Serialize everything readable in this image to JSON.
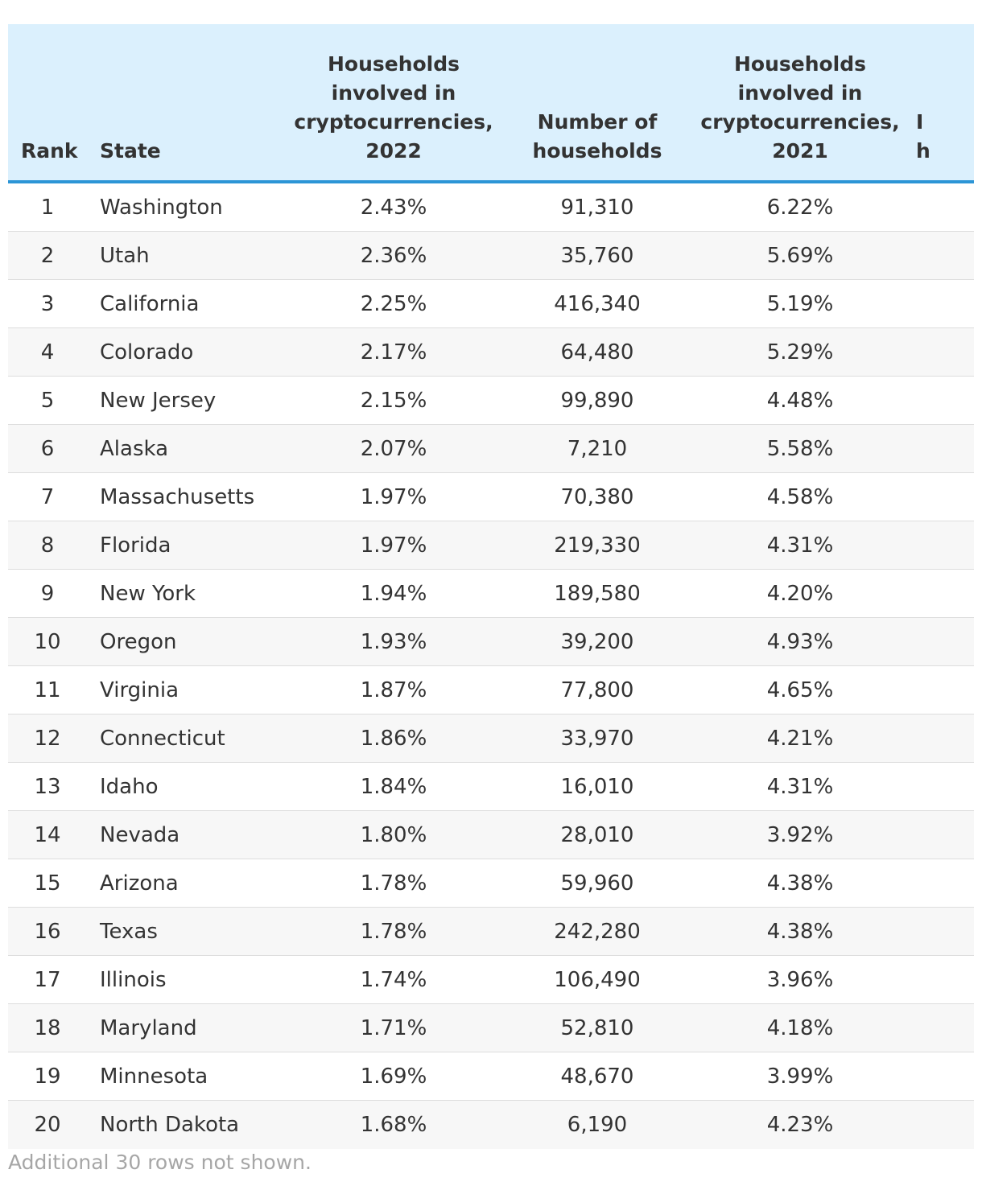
{
  "table": {
    "headers": {
      "rank": "Rank",
      "state": "State",
      "households_2022": "Households\ninvolved in\ncryptocurrencies,\n2022",
      "num_households": "Number of\nhouseholds",
      "households_2021": "Households\ninvolved in\ncryptocurrencies,\n2021",
      "cut_off": "I\nh"
    },
    "rows": [
      {
        "rank": "1",
        "state": "Washington",
        "h2022": "2.43%",
        "num": "91,310",
        "h2021": "6.22%"
      },
      {
        "rank": "2",
        "state": "Utah",
        "h2022": "2.36%",
        "num": "35,760",
        "h2021": "5.69%"
      },
      {
        "rank": "3",
        "state": "California",
        "h2022": "2.25%",
        "num": "416,340",
        "h2021": "5.19%"
      },
      {
        "rank": "4",
        "state": "Colorado",
        "h2022": "2.17%",
        "num": "64,480",
        "h2021": "5.29%"
      },
      {
        "rank": "5",
        "state": "New Jersey",
        "h2022": "2.15%",
        "num": "99,890",
        "h2021": "4.48%"
      },
      {
        "rank": "6",
        "state": "Alaska",
        "h2022": "2.07%",
        "num": "7,210",
        "h2021": "5.58%"
      },
      {
        "rank": "7",
        "state": "Massachusetts",
        "h2022": "1.97%",
        "num": "70,380",
        "h2021": "4.58%"
      },
      {
        "rank": "8",
        "state": "Florida",
        "h2022": "1.97%",
        "num": "219,330",
        "h2021": "4.31%"
      },
      {
        "rank": "9",
        "state": "New York",
        "h2022": "1.94%",
        "num": "189,580",
        "h2021": "4.20%"
      },
      {
        "rank": "10",
        "state": "Oregon",
        "h2022": "1.93%",
        "num": "39,200",
        "h2021": "4.93%"
      },
      {
        "rank": "11",
        "state": "Virginia",
        "h2022": "1.87%",
        "num": "77,800",
        "h2021": "4.65%"
      },
      {
        "rank": "12",
        "state": "Connecticut",
        "h2022": "1.86%",
        "num": "33,970",
        "h2021": "4.21%"
      },
      {
        "rank": "13",
        "state": "Idaho",
        "h2022": "1.84%",
        "num": "16,010",
        "h2021": "4.31%"
      },
      {
        "rank": "14",
        "state": "Nevada",
        "h2022": "1.80%",
        "num": "28,010",
        "h2021": "3.92%"
      },
      {
        "rank": "15",
        "state": "Arizona",
        "h2022": "1.78%",
        "num": "59,960",
        "h2021": "4.38%"
      },
      {
        "rank": "16",
        "state": "Texas",
        "h2022": "1.78%",
        "num": "242,280",
        "h2021": "4.38%"
      },
      {
        "rank": "17",
        "state": "Illinois",
        "h2022": "1.74%",
        "num": "106,490",
        "h2021": "3.96%"
      },
      {
        "rank": "18",
        "state": "Maryland",
        "h2022": "1.71%",
        "num": "52,810",
        "h2021": "4.18%"
      },
      {
        "rank": "19",
        "state": "Minnesota",
        "h2022": "1.69%",
        "num": "48,670",
        "h2021": "3.99%"
      },
      {
        "rank": "20",
        "state": "North Dakota",
        "h2022": "1.68%",
        "num": "6,190",
        "h2021": "4.23%"
      }
    ]
  },
  "footnote": "Additional 30 rows not shown.",
  "colors": {
    "header_bg": "#dbf0fd",
    "header_border": "#2c95d6",
    "stripe": "#f7f7f7",
    "footnote": "#a6a6a6"
  }
}
